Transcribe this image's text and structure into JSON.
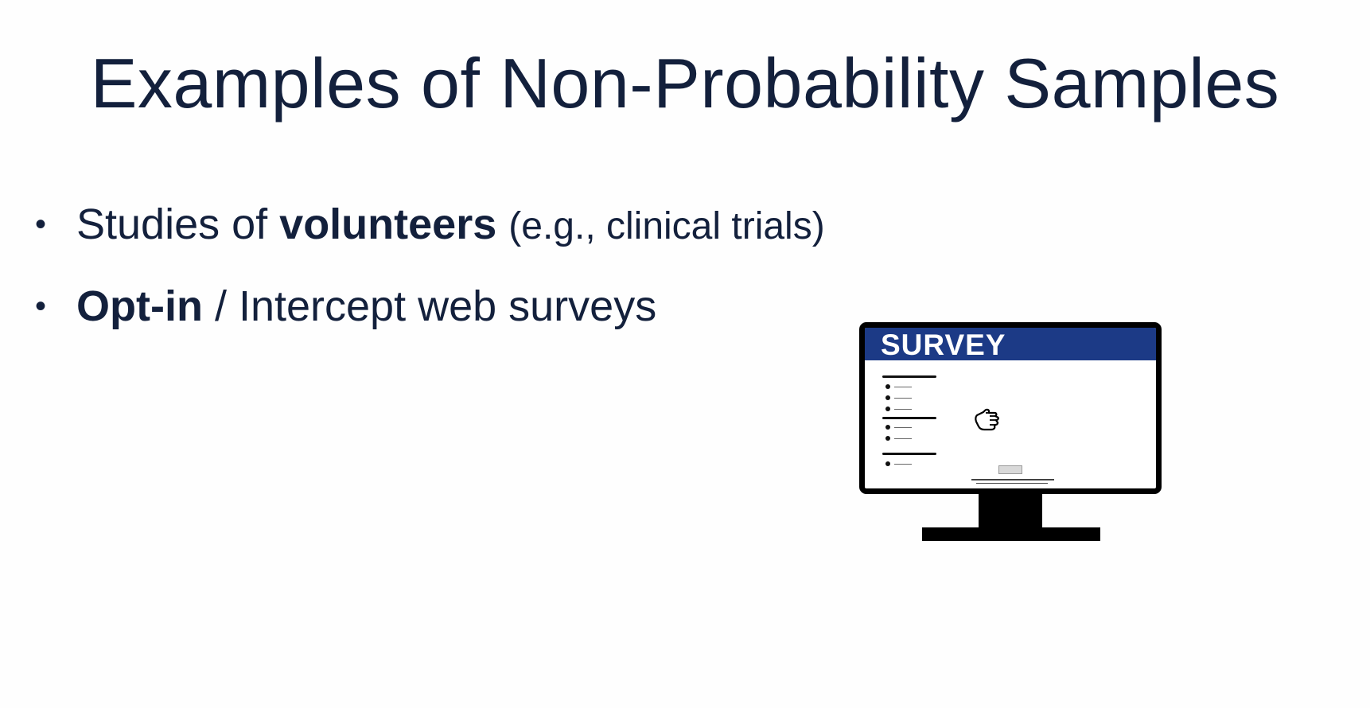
{
  "slide": {
    "title": "Examples of Non-Probability Samples",
    "bullets": [
      {
        "marker": "•",
        "pre": "Studies of ",
        "strong": "volunteers",
        "post": " ",
        "paren": "(e.g., clinical trials)"
      },
      {
        "marker": "•",
        "pre": "",
        "strong": "Opt-in",
        "post": " / Intercept web surveys",
        "paren": ""
      }
    ],
    "illustration": {
      "screen_header": "SURVEY",
      "header_color": "#1c3a86",
      "frame_color": "#000000",
      "icons": [
        "monitor-icon",
        "hand-pointer-icon"
      ]
    }
  }
}
